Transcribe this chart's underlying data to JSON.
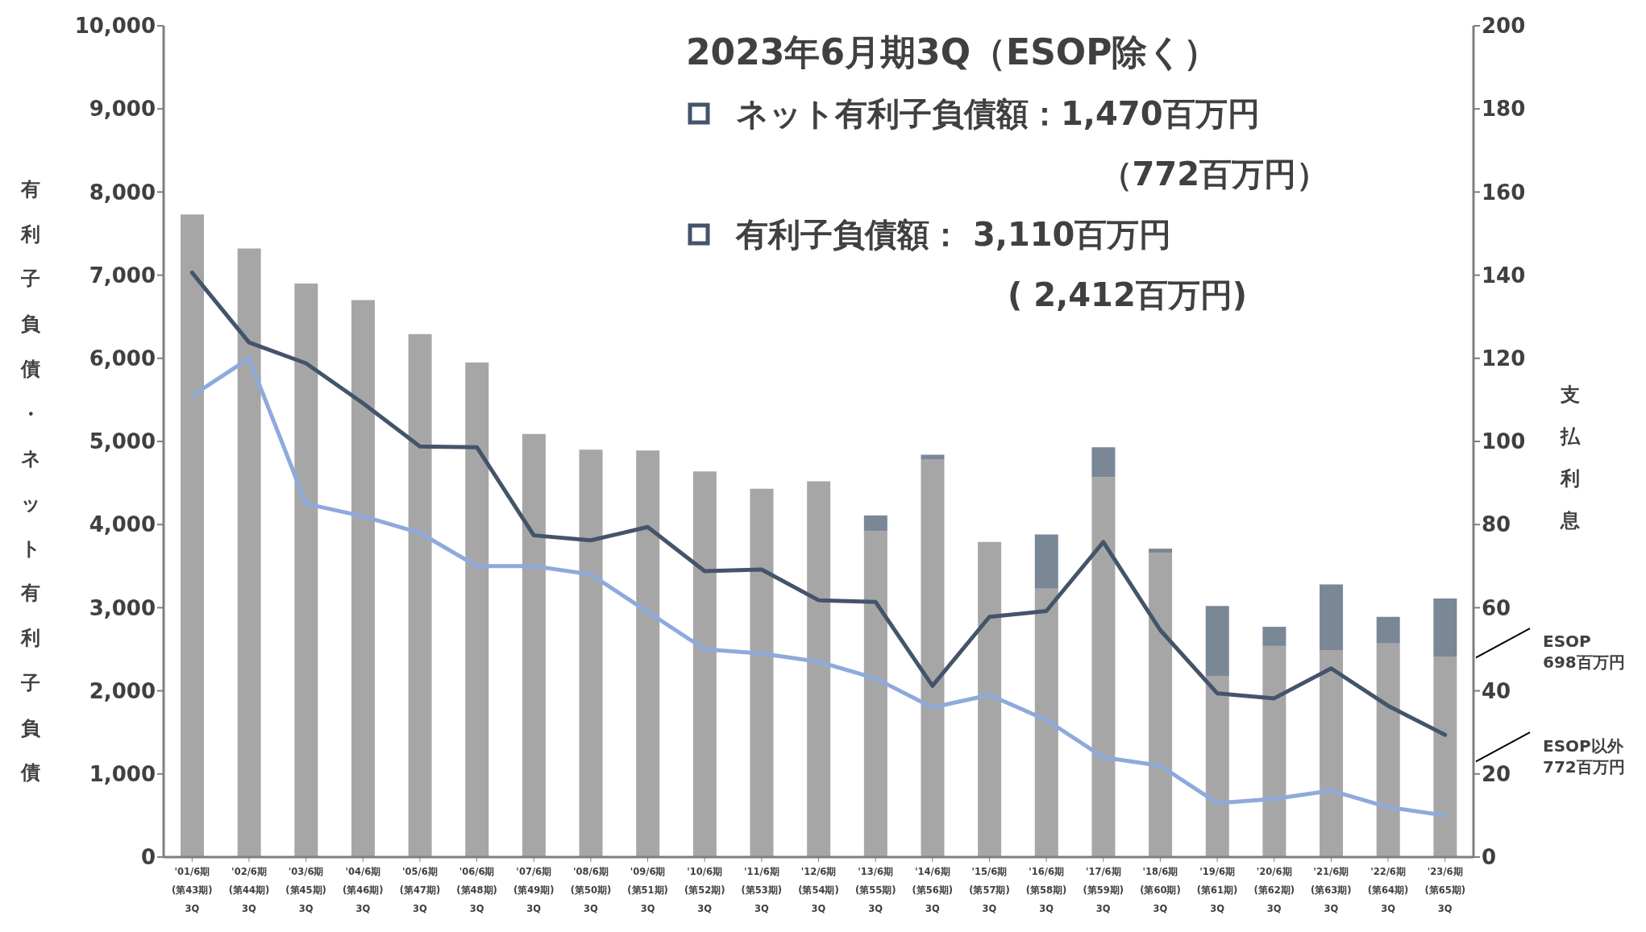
{
  "chart_data": {
    "type": "bar",
    "title": "2023年6月期3Q（ESOP除く）",
    "ylabel": "有利子負債・ネット有利子負債",
    "y2label": "支払利息",
    "categories": [
      "'01/6期\n(第43期)\n3Q",
      "'02/6期\n(第44期)\n3Q",
      "'03/6期\n(第45期)\n3Q",
      "'04/6期\n(第46期)\n3Q",
      "'05/6期\n(第47期)\n3Q",
      "'06/6期\n(第48期)\n3Q",
      "'07/6期\n(第49期)\n3Q",
      "'08/6期\n(第50期)\n3Q",
      "'09/6期\n(第51期)\n3Q",
      "'10/6期\n(第52期)\n3Q",
      "'11/6期\n(第53期)\n3Q",
      "'12/6期\n(第54期)\n3Q",
      "'13/6期\n(第55期)\n3Q",
      "'14/6期\n(第56期)\n3Q",
      "'15/6期\n(第57期)\n3Q",
      "'16/6期\n(第58期)\n3Q",
      "'17/6期\n(第59期)\n3Q",
      "'18/6期\n(第60期)\n3Q",
      "'19/6期\n(第61期)\n3Q",
      "'20/6期\n(第62期)\n3Q",
      "'21/6期\n(第63期)\n3Q",
      "'22/6期\n(第64期)\n3Q",
      "'23/6期\n(第65期)\n3Q"
    ],
    "stacked": true,
    "series": [
      {
        "color": "#a6a6a6",
        "values": [
          7730,
          7320,
          6900,
          6700,
          6290,
          5950,
          5090,
          4900,
          4890,
          4640,
          4430,
          4520,
          3920,
          4780,
          3790,
          3230,
          4570,
          3660,
          2180,
          2540,
          2490,
          2570,
          2412
        ]
      },
      {
        "color": "#7a8797",
        "values": [
          null,
          null,
          null,
          null,
          null,
          null,
          null,
          null,
          null,
          null,
          null,
          null,
          190,
          60,
          null,
          650,
          360,
          50,
          840,
          230,
          790,
          320,
          698
        ]
      },
      {
        "type": "line",
        "color": "#44546a",
        "values": [
          7030,
          6190,
          5940,
          5460,
          4940,
          4930,
          3870,
          3810,
          3970,
          3440,
          3460,
          3090,
          3070,
          2060,
          2890,
          2960,
          3790,
          2730,
          1970,
          1910,
          2270,
          1820,
          1470
        ]
      },
      {
        "type": "line",
        "color": "#8eaadb",
        "axis": "y2",
        "values": [
          111,
          120,
          85,
          82,
          78,
          70,
          70,
          68,
          59,
          50,
          49,
          47,
          43,
          36,
          39,
          33,
          24,
          22,
          13,
          14,
          16,
          12,
          10
        ]
      }
    ],
    "ylim": [
      0,
      10000
    ],
    "yticks": [
      0,
      {
        "value": 1000,
        "label": "1,000"
      },
      {
        "value": 2000,
        "label": "2,000"
      },
      {
        "value": 3000,
        "label": "3,000"
      },
      {
        "value": 4000,
        "label": "4,000"
      },
      {
        "value": 5000,
        "label": "5,000"
      },
      {
        "value": 6000,
        "label": "6,000"
      },
      {
        "value": 7000,
        "label": "7,000"
      },
      {
        "value": 8000,
        "label": "8,000"
      },
      {
        "value": 9000,
        "label": "9,000"
      },
      {
        "value": 10000,
        "label": "10,000"
      }
    ],
    "y2lim": [
      0,
      200
    ],
    "y2ticks": [
      0,
      20,
      40,
      60,
      80,
      100,
      120,
      140,
      160,
      180,
      200
    ],
    "grid": false,
    "legend": false,
    "marker": "none",
    "line_style": "solid",
    "annotations": [
      "ネット有利子負債額：1,470百万円",
      "（772百万円）",
      "有利子負債額： 3,110百万円",
      "( 2,412百万円)",
      "ESOP\n698百万円",
      "ESOP以外\n772百万円"
    ]
  }
}
